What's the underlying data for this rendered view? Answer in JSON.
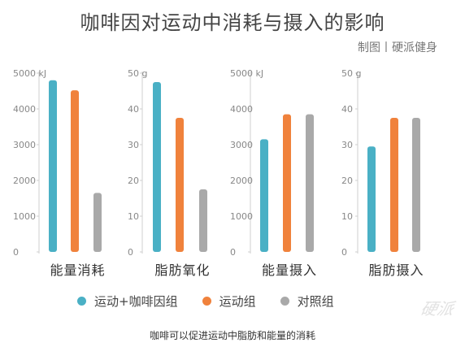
{
  "title": "咖啡因对运动中消耗与摄入的影响",
  "credit": "制图丨硬派健身",
  "caption": "咖啡可以促进运动中脂肪和能量的消耗",
  "watermark": "硬派",
  "colors": {
    "caffeine": "#4ab0c5",
    "exercise": "#f0823c",
    "control": "#a9a9a9"
  },
  "legend": [
    {
      "label": "运动+咖啡因组",
      "color": "#4ab0c5"
    },
    {
      "label": "运动组",
      "color": "#f0823c"
    },
    {
      "label": "对照组",
      "color": "#a9a9a9"
    }
  ],
  "chart_data": [
    {
      "type": "bar",
      "xlabel": "能量消耗",
      "unit": "kJ",
      "ylim": [
        0,
        5000
      ],
      "yticks": [
        "0",
        "1000",
        "2000",
        "3000",
        "4000",
        "5000"
      ],
      "series": [
        {
          "name": "运动+咖啡因组",
          "values": [
            4800
          ]
        },
        {
          "name": "运动组",
          "values": [
            4520
          ]
        },
        {
          "name": "对照组",
          "values": [
            1650
          ]
        }
      ]
    },
    {
      "type": "bar",
      "xlabel": "脂肪氧化",
      "unit": "g",
      "ylim": [
        0,
        50
      ],
      "yticks": [
        "0",
        "10",
        "20",
        "30",
        "40",
        "50"
      ],
      "series": [
        {
          "name": "运动+咖啡因组",
          "values": [
            47.5
          ]
        },
        {
          "name": "运动组",
          "values": [
            37.5
          ]
        },
        {
          "name": "对照组",
          "values": [
            17.5
          ]
        }
      ]
    },
    {
      "type": "bar",
      "xlabel": "能量摄入",
      "unit": "kJ",
      "ylim": [
        0,
        5000
      ],
      "yticks": [
        "0",
        "1000",
        "2000",
        "3000",
        "4000",
        "5000"
      ],
      "series": [
        {
          "name": "运动+咖啡因组",
          "values": [
            3150
          ]
        },
        {
          "name": "运动组",
          "values": [
            3850
          ]
        },
        {
          "name": "对照组",
          "values": [
            3850
          ]
        }
      ]
    },
    {
      "type": "bar",
      "xlabel": "脂肪摄入",
      "unit": "g",
      "ylim": [
        0,
        50
      ],
      "yticks": [
        "0",
        "10",
        "20",
        "30",
        "40",
        "50"
      ],
      "series": [
        {
          "name": "运动+咖啡因组",
          "values": [
            29.5
          ]
        },
        {
          "name": "运动组",
          "values": [
            37.5
          ]
        },
        {
          "name": "对照组",
          "values": [
            37.5
          ]
        }
      ]
    }
  ]
}
